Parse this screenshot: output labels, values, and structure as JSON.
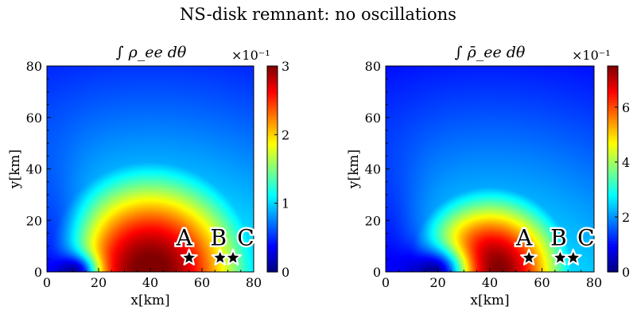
{
  "figure": {
    "suptitle": "NS-disk remnant: no oscillations"
  },
  "colors": {
    "colormap": "jet",
    "marker_fill": "#000000",
    "marker_edge": "#ffffff"
  },
  "chart_data": [
    {
      "type": "heatmap",
      "title": "∫ ρ_ee dθ",
      "xlabel": "x[km]",
      "ylabel": "y[km]",
      "xlim": [
        0,
        80
      ],
      "ylim": [
        0,
        80
      ],
      "xticks": [
        0,
        20,
        40,
        60,
        80
      ],
      "yticks": [
        0,
        20,
        40,
        60,
        80
      ],
      "colorbar": {
        "range": [
          0,
          3
        ],
        "ticks": [
          0,
          1,
          2,
          3
        ],
        "multiplier": "×10⁻¹"
      },
      "field": {
        "center_x": 40,
        "peak": 3.05,
        "radial_extent": 34,
        "outer_min": 0.7,
        "inner_hole_x": 10,
        "inner_hole_value": 0.05
      },
      "markers": [
        {
          "label": "A",
          "x": 55,
          "y": 3
        },
        {
          "label": "B",
          "x": 67,
          "y": 3
        },
        {
          "label": "C",
          "x": 72,
          "y": 3
        }
      ]
    },
    {
      "type": "heatmap",
      "title": "∫ ρ̄_ee dθ",
      "xlabel": "x[km]",
      "ylabel": "y[km]",
      "xlim": [
        0,
        80
      ],
      "ylim": [
        0,
        80
      ],
      "xticks": [
        0,
        20,
        40,
        60,
        80
      ],
      "yticks": [
        0,
        20,
        40,
        60,
        80
      ],
      "colorbar": {
        "range": [
          0,
          7.5
        ],
        "ticks": [
          0,
          2,
          4,
          6
        ],
        "multiplier": "×10⁻¹"
      },
      "field": {
        "center_x": 40,
        "peak": 7.7,
        "radial_extent": 26,
        "outer_min": 1.4,
        "inner_hole_x": 18,
        "inner_hole_value": 0.05
      },
      "markers": [
        {
          "label": "A",
          "x": 55,
          "y": 3
        },
        {
          "label": "B",
          "x": 67,
          "y": 3
        },
        {
          "label": "C",
          "x": 72,
          "y": 3
        }
      ]
    }
  ]
}
